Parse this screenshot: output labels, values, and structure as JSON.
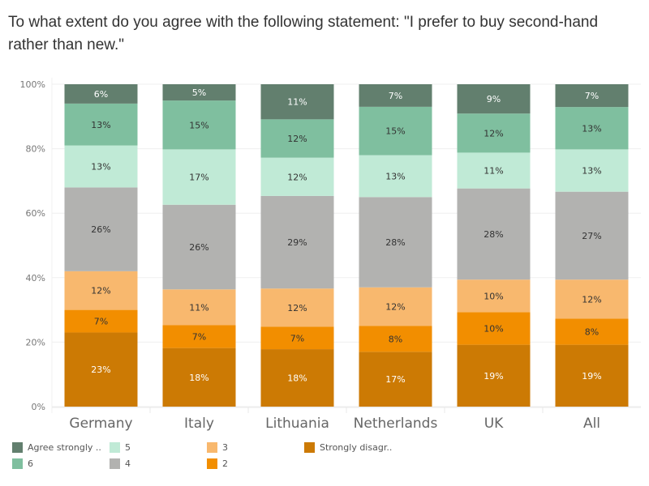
{
  "title": "To what extent do you agree with the following statement: \"I prefer to buy second-hand rather than new.\"",
  "chart_data": {
    "type": "bar",
    "stacked": true,
    "normalized_percent": true,
    "title": "To what extent do you agree with the following statement: \"I prefer to buy second-hand rather than new.\"",
    "xlabel": "",
    "ylabel": "",
    "ylim": [
      0,
      100
    ],
    "yticks": [
      "0%",
      "20%",
      "40%",
      "60%",
      "80%",
      "100%"
    ],
    "ytick_values": [
      0,
      20,
      40,
      60,
      80,
      100
    ],
    "grid": true,
    "legend_position": "bottom-left",
    "categories": [
      "Germany",
      "Italy",
      "Lithuania",
      "Netherlands",
      "UK",
      "All"
    ],
    "series": [
      {
        "name": "Strongly disagr..",
        "color": "#cc7a04",
        "label_color": "#ffffff",
        "values": [
          23,
          18,
          18,
          17,
          19,
          19
        ]
      },
      {
        "name": "2",
        "color": "#f28e00",
        "label_color": "#333333",
        "values": [
          7,
          7,
          7,
          8,
          10,
          8
        ]
      },
      {
        "name": "3",
        "color": "#f8b86e",
        "label_color": "#333333",
        "values": [
          12,
          11,
          12,
          12,
          10,
          12
        ]
      },
      {
        "name": "4",
        "color": "#b2b2b0",
        "label_color": "#333333",
        "values": [
          26,
          26,
          29,
          28,
          28,
          27
        ]
      },
      {
        "name": "5",
        "color": "#c0ead6",
        "label_color": "#333333",
        "values": [
          13,
          17,
          12,
          13,
          11,
          13
        ]
      },
      {
        "name": "6",
        "color": "#7fbf9f",
        "label_color": "#333333",
        "values": [
          13,
          15,
          12,
          15,
          12,
          13
        ]
      },
      {
        "name": "Agree strongly ..",
        "color": "#627f6e",
        "label_color": "#ffffff",
        "values": [
          6,
          5,
          11,
          7,
          9,
          7
        ]
      }
    ]
  },
  "legend": {
    "items": [
      {
        "label": "Agree strongly ..",
        "color": "#627f6e"
      },
      {
        "label": "6",
        "color": "#7fbf9f"
      },
      {
        "label": "5",
        "color": "#c0ead6"
      },
      {
        "label": "4",
        "color": "#b2b2b0"
      },
      {
        "label": "3",
        "color": "#f8b86e"
      },
      {
        "label": "2",
        "color": "#f28e00"
      },
      {
        "label": "Strongly disagr..",
        "color": "#cc7a04"
      }
    ]
  }
}
